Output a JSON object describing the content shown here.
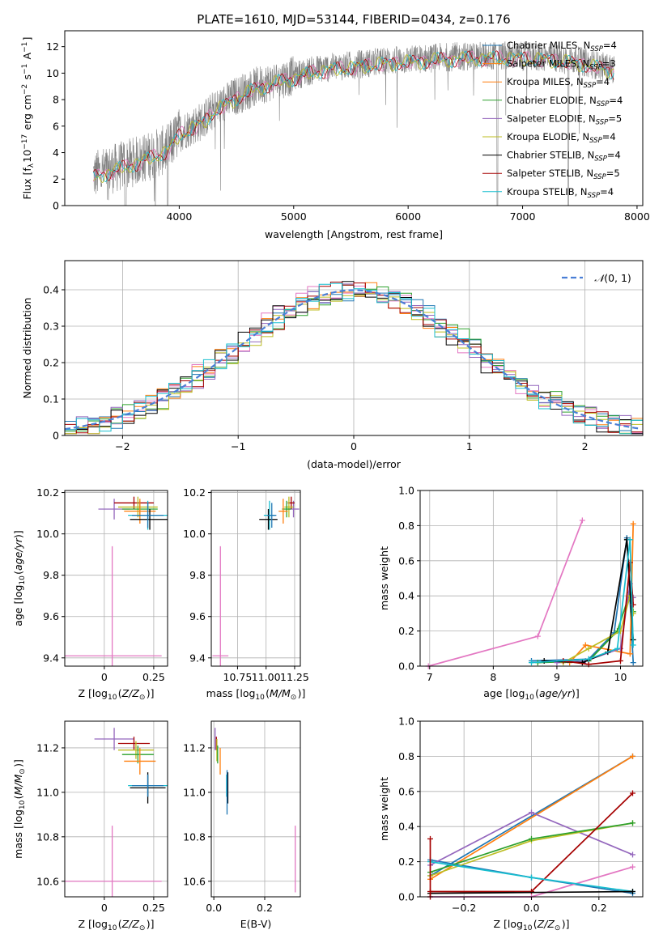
{
  "title": "PLATE=1610, MJD=53144, FIBERID=0434, z=0.176",
  "colors": [
    "#1f77b4",
    "#ff7f0e",
    "#2ca02c",
    "#9467bd",
    "#e377c2",
    "#bcbd22",
    "#000000",
    "#a50000",
    "#17becf",
    "#4a7fd6",
    "#808080"
  ],
  "chart_data": [
    {
      "id": "spectrum",
      "type": "line",
      "xlabel": "wavelength [Angstrom, rest frame]",
      "ylabel": "Flux [f_λ 10^-17 erg cm^-2 s^-1 A^-1]",
      "xlim": [
        3000,
        8050
      ],
      "ylim": [
        0,
        13.2
      ],
      "xticks": [
        4000,
        5000,
        6000,
        7000,
        8000
      ],
      "yticks": [
        0,
        2,
        4,
        6,
        8,
        10,
        12
      ],
      "x_range": [
        3250,
        7800
      ],
      "flux_profile": {
        "x": [
          3250,
          3500,
          3700,
          3900,
          4000,
          4200,
          4300,
          4500,
          4700,
          5000,
          5200,
          5500,
          5800,
          6000,
          6300,
          6600,
          6900,
          7200,
          7500,
          7800
        ],
        "y": [
          2.3,
          3.0,
          3.6,
          4.3,
          5.5,
          6.4,
          7.2,
          8.3,
          9.1,
          9.8,
          10.3,
          10.6,
          10.9,
          11.0,
          11.2,
          11.3,
          11.3,
          11.2,
          10.9,
          10.3
        ]
      },
      "legend": [
        {
          "label": "Chabrier MILES, N_SSP=4",
          "color": "#1f77b4"
        },
        {
          "label": "Salpeter MILES, N_SSP=3",
          "color": "#ff7f0e"
        },
        {
          "label": "Kroupa MILES, N_SSP=4",
          "color": "#ff7f0e"
        },
        {
          "label": "Chabrier ELODIE, N_SSP=4",
          "color": "#2ca02c"
        },
        {
          "label": "Salpeter ELODIE, N_SSP=5",
          "color": "#9467bd"
        },
        {
          "label": "Kroupa ELODIE, N_SSP=4",
          "color": "#bcbd22"
        },
        {
          "label": "Chabrier STELIB, N_SSP=4",
          "color": "#000000"
        },
        {
          "label": "Salpeter STELIB, N_SSP=5",
          "color": "#a50000"
        },
        {
          "label": "Kroupa STELIB, N_SSP=4",
          "color": "#17becf"
        }
      ],
      "legend_placement": "right",
      "grid": false
    },
    {
      "id": "residuals",
      "type": "histogram",
      "xlabel": "(data-model)/error",
      "ylabel": "Normed distribution",
      "xlim": [
        -2.5,
        2.5
      ],
      "ylim": [
        0,
        0.48
      ],
      "xticks": [
        -2,
        -1,
        0,
        1,
        2
      ],
      "yticks": [
        0.0,
        0.1,
        0.2,
        0.3,
        0.4
      ],
      "curve_label": "N(0,1)",
      "bin_width": 0.1,
      "series_colors": [
        "#1f77b4",
        "#ff7f0e",
        "#2ca02c",
        "#9467bd",
        "#e377c2",
        "#bcbd22",
        "#000000",
        "#a50000",
        "#17becf"
      ],
      "grid": true
    },
    {
      "id": "z-age",
      "type": "scatter",
      "xlabel": "Z [log10(Z/Z_sun)]",
      "ylabel": "age [log10(age/yr)]",
      "xlim": [
        -0.2,
        0.32
      ],
      "ylim": [
        9.36,
        10.21
      ],
      "xticks": [
        0.0,
        0.25
      ],
      "ytick_labels": [
        "9.4",
        "9.6",
        "9.8",
        "10.0",
        "10.2"
      ],
      "yticks": [
        9.4,
        9.6,
        9.8,
        10.0,
        10.2
      ],
      "points": [
        {
          "x": 0.05,
          "y": 10.12,
          "xerr": 0.08,
          "yerr": 0.05,
          "c": "#9467bd"
        },
        {
          "x": 0.15,
          "y": 10.15,
          "xerr": 0.1,
          "yerr": 0.03,
          "c": "#a50000"
        },
        {
          "x": 0.17,
          "y": 10.13,
          "xerr": 0.1,
          "yerr": 0.05,
          "c": "#bcbd22"
        },
        {
          "x": 0.18,
          "y": 10.12,
          "xerr": 0.09,
          "yerr": 0.04,
          "c": "#2ca02c"
        },
        {
          "x": 0.18,
          "y": 10.11,
          "xerr": 0.08,
          "yerr": 0.06,
          "c": "#ff7f0e"
        },
        {
          "x": 0.22,
          "y": 10.09,
          "xerr": 0.1,
          "yerr": 0.07,
          "c": "#17becf"
        },
        {
          "x": 0.23,
          "y": 10.07,
          "xerr": 0.1,
          "yerr": 0.05,
          "c": "#000000"
        },
        {
          "x": 0.22,
          "y": 10.09,
          "xerr": 0.08,
          "yerr": 0.06,
          "c": "#1f77b4"
        },
        {
          "x": 0.04,
          "y": 9.41,
          "xerr": 0.25,
          "yerr": 0.53,
          "c": "#e377c2"
        }
      ],
      "grid": true
    },
    {
      "id": "mass-age",
      "type": "scatter",
      "xlabel": "mass [log10(M/M_sun)]",
      "ylabel": "",
      "xlim": [
        10.52,
        11.3
      ],
      "ylim": [
        9.36,
        10.21
      ],
      "xticks": [
        10.75,
        11.0,
        11.25
      ],
      "xtick_labels": [
        "10.75",
        "11.00",
        "11.25"
      ],
      "yticks": [
        9.4,
        9.6,
        9.8,
        10.0,
        10.2
      ],
      "ytick_labels": [
        "9.4",
        "9.6",
        "9.8",
        "10.0",
        "10.2"
      ],
      "points": [
        {
          "x": 11.24,
          "y": 10.12,
          "xerr": 0.05,
          "yerr": 0.04,
          "c": "#9467bd"
        },
        {
          "x": 11.22,
          "y": 10.15,
          "xerr": 0.03,
          "yerr": 0.03,
          "c": "#a50000"
        },
        {
          "x": 11.2,
          "y": 10.13,
          "xerr": 0.04,
          "yerr": 0.05,
          "c": "#bcbd22"
        },
        {
          "x": 11.18,
          "y": 10.12,
          "xerr": 0.04,
          "yerr": 0.04,
          "c": "#2ca02c"
        },
        {
          "x": 11.15,
          "y": 10.11,
          "xerr": 0.04,
          "yerr": 0.06,
          "c": "#ff7f0e"
        },
        {
          "x": 11.03,
          "y": 10.09,
          "xerr": 0.05,
          "yerr": 0.07,
          "c": "#17becf"
        },
        {
          "x": 11.02,
          "y": 10.07,
          "xerr": 0.08,
          "yerr": 0.05,
          "c": "#000000"
        },
        {
          "x": 11.05,
          "y": 10.09,
          "xerr": 0.04,
          "yerr": 0.06,
          "c": "#1f77b4"
        },
        {
          "x": 10.6,
          "y": 9.41,
          "xerr": 0.07,
          "yerr": 0.53,
          "c": "#e377c2"
        }
      ],
      "grid": true
    },
    {
      "id": "age-weight",
      "type": "line",
      "xlabel": "age [log10(age/yr)]",
      "ylabel": "mass weight",
      "xlim": [
        6.85,
        10.35
      ],
      "ylim": [
        0,
        1.0
      ],
      "xticks": [
        7,
        8,
        9,
        10
      ],
      "yticks": [
        0.0,
        0.2,
        0.4,
        0.6,
        0.8,
        1.0
      ],
      "ytick_labels": [
        "0.0",
        "0.2",
        "0.4",
        "0.6",
        "0.8",
        "1.0"
      ],
      "series": [
        {
          "c": "#e377c2",
          "x": [
            6.98,
            8.7,
            9.4
          ],
          "y": [
            0.0,
            0.17,
            0.83
          ]
        },
        {
          "c": "#1f77b4",
          "x": [
            8.6,
            9.5,
            9.9,
            10.1,
            10.2
          ],
          "y": [
            0.03,
            0.04,
            0.19,
            0.73,
            0.02
          ]
        },
        {
          "c": "#ff7f0e",
          "x": [
            9.2,
            9.45,
            10.15,
            10.2
          ],
          "y": [
            0.02,
            0.12,
            0.07,
            0.81
          ]
        },
        {
          "c": "#2ca02c",
          "x": [
            8.7,
            9.5,
            9.95,
            10.15,
            10.2
          ],
          "y": [
            0.02,
            0.03,
            0.2,
            0.42,
            0.31
          ]
        },
        {
          "c": "#9467bd",
          "x": [
            9.0,
            9.45,
            10.0,
            10.15,
            10.2
          ],
          "y": [
            0.02,
            0.03,
            0.1,
            0.47,
            0.39
          ]
        },
        {
          "c": "#bcbd22",
          "x": [
            9.1,
            9.5,
            10.0,
            10.15,
            10.2
          ],
          "y": [
            0.02,
            0.1,
            0.2,
            0.4,
            0.3
          ]
        },
        {
          "c": "#000000",
          "x": [
            8.8,
            9.4,
            9.8,
            10.1,
            10.2
          ],
          "y": [
            0.03,
            0.02,
            0.08,
            0.72,
            0.15
          ]
        },
        {
          "c": "#a50000",
          "x": [
            9.1,
            9.5,
            10.0,
            10.15,
            10.2
          ],
          "y": [
            0.03,
            0.01,
            0.03,
            0.59,
            0.35
          ]
        },
        {
          "c": "#17becf",
          "x": [
            8.6,
            9.5,
            9.95,
            10.15,
            10.2
          ],
          "y": [
            0.02,
            0.04,
            0.1,
            0.72,
            0.12
          ]
        }
      ],
      "grid": true
    },
    {
      "id": "z-mass",
      "type": "scatter",
      "xlabel": "Z [log10(Z/Z_sun)]",
      "ylabel": "mass [log10(M/M_sun)]",
      "xlim": [
        -0.2,
        0.32
      ],
      "ylim": [
        10.53,
        11.32
      ],
      "xticks": [
        0.0,
        0.25
      ],
      "yticks": [
        10.6,
        10.8,
        11.0,
        11.2
      ],
      "ytick_labels": [
        "10.6",
        "10.8",
        "11.0",
        "11.2"
      ],
      "points": [
        {
          "x": 0.05,
          "y": 11.24,
          "xerr": 0.1,
          "yerr": 0.05,
          "c": "#9467bd"
        },
        {
          "x": 0.15,
          "y": 11.22,
          "xerr": 0.08,
          "yerr": 0.03,
          "c": "#a50000"
        },
        {
          "x": 0.16,
          "y": 11.19,
          "xerr": 0.09,
          "yerr": 0.04,
          "c": "#bcbd22"
        },
        {
          "x": 0.17,
          "y": 11.17,
          "xerr": 0.08,
          "yerr": 0.04,
          "c": "#2ca02c"
        },
        {
          "x": 0.18,
          "y": 11.14,
          "xerr": 0.08,
          "yerr": 0.06,
          "c": "#ff7f0e"
        },
        {
          "x": 0.22,
          "y": 11.03,
          "xerr": 0.1,
          "yerr": 0.05,
          "c": "#17becf"
        },
        {
          "x": 0.22,
          "y": 11.02,
          "xerr": 0.09,
          "yerr": 0.07,
          "c": "#000000"
        },
        {
          "x": 0.22,
          "y": 11.03,
          "xerr": 0.08,
          "yerr": 0.05,
          "c": "#1f77b4"
        },
        {
          "x": 0.04,
          "y": 10.6,
          "xerr": 0.25,
          "yerr": 0.25,
          "c": "#e377c2"
        }
      ],
      "grid": true
    },
    {
      "id": "ebv-mass",
      "type": "scatter",
      "xlabel": "E(B-V)",
      "ylabel": "",
      "xlim": [
        -0.01,
        0.34
      ],
      "ylim": [
        10.53,
        11.32
      ],
      "xticks": [
        0.0,
        0.2
      ],
      "xtick_labels": [
        "0.0",
        "0.2"
      ],
      "yticks": [
        10.6,
        10.8,
        11.0,
        11.2
      ],
      "ytick_labels": [
        "10.6",
        "10.8",
        "11.0",
        "11.2"
      ],
      "points": [
        {
          "x": 0.005,
          "y": 11.24,
          "yerr": 0.05,
          "c": "#9467bd"
        },
        {
          "x": 0.01,
          "y": 11.22,
          "yerr": 0.03,
          "c": "#a50000"
        },
        {
          "x": 0.012,
          "y": 11.19,
          "yerr": 0.05,
          "c": "#bcbd22"
        },
        {
          "x": 0.015,
          "y": 11.17,
          "yerr": 0.04,
          "c": "#2ca02c"
        },
        {
          "x": 0.025,
          "y": 11.14,
          "yerr": 0.06,
          "c": "#ff7f0e"
        },
        {
          "x": 0.05,
          "y": 11.03,
          "yerr": 0.05,
          "c": "#17becf"
        },
        {
          "x": 0.055,
          "y": 11.02,
          "yerr": 0.07,
          "c": "#000000"
        },
        {
          "x": 0.052,
          "y": 11.0,
          "yerr": 0.1,
          "c": "#1f77b4"
        },
        {
          "x": 0.32,
          "y": 10.7,
          "yerr": 0.15,
          "c": "#e377c2"
        }
      ],
      "grid": true
    },
    {
      "id": "z-weight",
      "type": "line",
      "xlabel": "Z [log10(Z/Z_sun)]",
      "ylabel": "mass weight",
      "xlim": [
        -0.33,
        0.33
      ],
      "ylim": [
        0,
        1.0
      ],
      "xticks": [
        -0.2,
        0.0,
        0.2
      ],
      "xtick_labels": [
        "−0.2",
        "0.0",
        "0.2"
      ],
      "yticks": [
        0.0,
        0.2,
        0.4,
        0.6,
        0.8,
        1.0
      ],
      "ytick_labels": [
        "0.0",
        "0.2",
        "0.4",
        "0.6",
        "0.8",
        "1.0"
      ],
      "series": [
        {
          "c": "#1f77b4",
          "x": [
            -0.3,
            0.0,
            0.3
          ],
          "y": [
            0.21,
            0.11,
            0.02
          ]
        },
        {
          "c": "#1f77b4",
          "x": [
            -0.3,
            0.3
          ],
          "y": [
            0.12,
            0.8
          ]
        },
        {
          "c": "#ff7f0e",
          "x": [
            -0.3,
            0.3
          ],
          "y": [
            0.1,
            0.8
          ]
        },
        {
          "c": "#9467bd",
          "x": [
            -0.3,
            0.0,
            0.3
          ],
          "y": [
            0.18,
            0.48,
            0.24
          ]
        },
        {
          "c": "#bcbd22",
          "x": [
            -0.3,
            0.0,
            0.3
          ],
          "y": [
            0.12,
            0.32,
            0.42
          ]
        },
        {
          "c": "#2ca02c",
          "x": [
            -0.3,
            0.0,
            0.3
          ],
          "y": [
            0.14,
            0.33,
            0.42
          ]
        },
        {
          "c": "#a50000",
          "x": [
            -0.3,
            0.0,
            0.3
          ],
          "y": [
            0.03,
            0.03,
            0.59
          ]
        },
        {
          "c": "#e377c2",
          "x": [
            -0.3,
            0.0,
            0.3
          ],
          "y": [
            0.0,
            0.0,
            0.17
          ]
        },
        {
          "c": "#17becf",
          "x": [
            -0.3,
            0.0,
            0.3
          ],
          "y": [
            0.2,
            0.11,
            0.03
          ]
        },
        {
          "c": "#000000",
          "x": [
            -0.3,
            0.3
          ],
          "y": [
            0.02,
            0.03
          ]
        },
        {
          "c": "#a50000",
          "x": [
            -0.3,
            -0.3
          ],
          "y": [
            0.0,
            0.33
          ]
        }
      ],
      "grid": true
    }
  ]
}
